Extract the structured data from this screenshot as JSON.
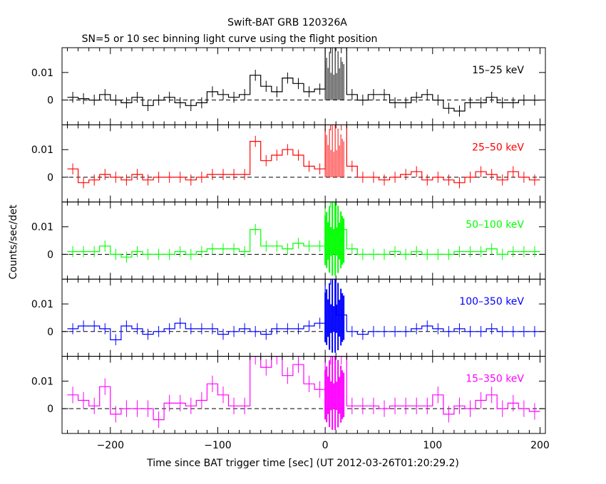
{
  "figure": {
    "title": "Swift-BAT GRB 120326A",
    "subtitle": "SN=5 or 10 sec binning light curve using the flight position",
    "xlabel": "Time since BAT trigger time [sec] (UT 2012-03-26T01:20:29.2)",
    "ylabel": "Counts/sec/det"
  },
  "chart_data": [
    {
      "type": "line",
      "name": "15-25 keV",
      "band_label": "15–25 keV",
      "color": "#000000",
      "xlim": [
        -245,
        205
      ],
      "ylim": [
        -0.009,
        0.019
      ],
      "baseline": 0,
      "yticks": [
        0,
        0.01
      ],
      "ytick_labels": [
        "0",
        "0.01"
      ],
      "xticks": [
        -200,
        -100,
        0,
        100,
        200
      ],
      "xtick_labels": [
        "−200",
        "−100",
        "0",
        "100",
        "200"
      ],
      "x": [
        -235,
        -225,
        -215,
        -205,
        -195,
        -185,
        -175,
        -165,
        -155,
        -145,
        -135,
        -125,
        -115,
        -105,
        -95,
        -85,
        -75,
        -65,
        -55,
        -45,
        -35,
        -25,
        -15,
        -5,
        5,
        15,
        25,
        35,
        45,
        55,
        65,
        75,
        85,
        95,
        105,
        115,
        125,
        135,
        145,
        155,
        165,
        175,
        185,
        195
      ],
      "y": [
        0.001,
        0.0005,
        0,
        0.002,
        0,
        -0.001,
        0.001,
        -0.002,
        0,
        0.001,
        -0.001,
        -0.002,
        -0.001,
        0.003,
        0.002,
        0.001,
        0.002,
        0.009,
        0.005,
        0.003,
        0.008,
        0.006,
        0.003,
        0.004,
        0.019,
        0.019,
        0.002,
        0,
        0.002,
        0.002,
        -0.001,
        -0.001,
        0.001,
        0.002,
        0,
        -0.003,
        -0.004,
        -0.001,
        -0.001,
        0.001,
        -0.001,
        -0.001,
        0,
        0
      ],
      "yerr": 0.002
    },
    {
      "type": "line",
      "name": "25-50 keV",
      "band_label": "25–50 keV",
      "color": "#ff0000",
      "xlim": [
        -245,
        205
      ],
      "ylim": [
        -0.009,
        0.019
      ],
      "baseline": 0,
      "yticks": [
        0,
        0.01
      ],
      "ytick_labels": [
        "0",
        "0.01"
      ],
      "xticks": [
        -200,
        -100,
        0,
        100,
        200
      ],
      "xtick_labels": [
        "−200",
        "−100",
        "0",
        "100",
        "200"
      ],
      "x": [
        -235,
        -225,
        -215,
        -205,
        -195,
        -185,
        -175,
        -165,
        -155,
        -145,
        -135,
        -125,
        -115,
        -105,
        -95,
        -85,
        -75,
        -65,
        -55,
        -45,
        -35,
        -25,
        -15,
        -5,
        5,
        15,
        25,
        35,
        45,
        55,
        65,
        75,
        85,
        95,
        105,
        115,
        125,
        135,
        145,
        155,
        165,
        175,
        185,
        195
      ],
      "y": [
        0.003,
        -0.002,
        -0.001,
        0.001,
        0,
        -0.001,
        0.001,
        -0.001,
        0,
        0,
        0,
        -0.001,
        0,
        0.001,
        0.001,
        0.001,
        0.001,
        0.013,
        0.006,
        0.008,
        0.01,
        0.008,
        0.004,
        0.003,
        0.019,
        0.019,
        0.004,
        0,
        0,
        -0.001,
        0,
        0.001,
        0.002,
        -0.001,
        0,
        -0.001,
        -0.002,
        0,
        0.002,
        0.001,
        -0.001,
        0.002,
        0,
        -0.001
      ],
      "yerr": 0.002
    },
    {
      "type": "line",
      "name": "50-100 keV",
      "band_label": "50–100 keV",
      "color": "#00ff00",
      "xlim": [
        -245,
        205
      ],
      "ylim": [
        -0.009,
        0.019
      ],
      "baseline": 0,
      "yticks": [
        0,
        0.01
      ],
      "ytick_labels": [
        "0",
        "0.01"
      ],
      "xticks": [
        -200,
        -100,
        0,
        100,
        200
      ],
      "xtick_labels": [
        "−200",
        "−100",
        "0",
        "100",
        "200"
      ],
      "x": [
        -235,
        -225,
        -215,
        -205,
        -195,
        -185,
        -175,
        -165,
        -155,
        -145,
        -135,
        -125,
        -115,
        -105,
        -95,
        -85,
        -75,
        -65,
        -55,
        -45,
        -35,
        -25,
        -15,
        -5,
        5,
        15,
        25,
        35,
        45,
        55,
        65,
        75,
        85,
        95,
        105,
        115,
        125,
        135,
        145,
        155,
        165,
        175,
        185,
        195
      ],
      "y": [
        0.001,
        0.001,
        0.001,
        0.003,
        0,
        -0.001,
        0.001,
        0,
        0,
        0,
        0.001,
        0,
        0.001,
        0.002,
        0.002,
        0.002,
        0.001,
        0.009,
        0.003,
        0.003,
        0.002,
        0.004,
        0.003,
        0.003,
        0.019,
        0.009,
        0.002,
        0,
        0,
        0,
        0.001,
        0,
        0.001,
        0,
        0,
        0,
        0.001,
        0.001,
        0.001,
        0.002,
        0,
        0.001,
        0.001,
        0.001
      ],
      "yerr": 0.002
    },
    {
      "type": "line",
      "name": "100-350 keV",
      "band_label": "100–350 keV",
      "color": "#0000ff",
      "xlim": [
        -245,
        205
      ],
      "ylim": [
        -0.009,
        0.019
      ],
      "baseline": 0,
      "yticks": [
        0,
        0.01
      ],
      "ytick_labels": [
        "0",
        "0.01"
      ],
      "xticks": [
        -200,
        -100,
        0,
        100,
        200
      ],
      "xtick_labels": [
        "−200",
        "−100",
        "0",
        "100",
        "200"
      ],
      "x": [
        -235,
        -225,
        -215,
        -205,
        -195,
        -185,
        -175,
        -165,
        -155,
        -145,
        -135,
        -125,
        -115,
        -105,
        -95,
        -85,
        -75,
        -65,
        -55,
        -45,
        -35,
        -25,
        -15,
        -5,
        5,
        15,
        25,
        35,
        45,
        55,
        65,
        75,
        85,
        95,
        105,
        115,
        125,
        135,
        145,
        155,
        165,
        175,
        185,
        195
      ],
      "y": [
        0.001,
        0.002,
        0.002,
        0.001,
        -0.003,
        0.002,
        0.001,
        -0.001,
        0,
        0.001,
        0.003,
        0.001,
        0.001,
        0.001,
        -0.001,
        0,
        0.001,
        0,
        -0.001,
        0.001,
        0.001,
        0.001,
        0.002,
        0.003,
        0.019,
        0.006,
        0,
        -0.001,
        0,
        0,
        0,
        0,
        0.001,
        0.002,
        0.001,
        0,
        0.001,
        0,
        0,
        0.001,
        0,
        0,
        0,
        0
      ],
      "yerr": 0.002
    },
    {
      "type": "line",
      "name": "15-350 keV",
      "band_label": "15–350 keV",
      "color": "#ff00ff",
      "xlim": [
        -245,
        205
      ],
      "ylim": [
        -0.009,
        0.019
      ],
      "baseline": 0,
      "yticks": [
        0,
        0.01
      ],
      "ytick_labels": [
        "0",
        "0.01"
      ],
      "xticks": [
        -200,
        -100,
        0,
        100,
        200
      ],
      "xtick_labels": [
        "−200",
        "−100",
        "0",
        "100",
        "200"
      ],
      "x": [
        -235,
        -225,
        -215,
        -205,
        -195,
        -185,
        -175,
        -165,
        -155,
        -145,
        -135,
        -125,
        -115,
        -105,
        -95,
        -85,
        -75,
        -65,
        -55,
        -45,
        -35,
        -25,
        -15,
        -5,
        5,
        15,
        25,
        35,
        45,
        55,
        65,
        75,
        85,
        95,
        105,
        115,
        125,
        135,
        145,
        155,
        165,
        175,
        185,
        195
      ],
      "y": [
        0.005,
        0.003,
        0.001,
        0.008,
        -0.002,
        0,
        0,
        0,
        -0.004,
        0.002,
        0.002,
        0.001,
        0.003,
        0.009,
        0.005,
        0.001,
        0.001,
        0.019,
        0.015,
        0.019,
        0.012,
        0.016,
        0.009,
        0.007,
        0.019,
        0.019,
        0.001,
        0.001,
        0.001,
        0,
        0.001,
        0.001,
        0.001,
        0.001,
        0.005,
        -0.002,
        0.001,
        0,
        0.003,
        0.005,
        0,
        0.002,
        0,
        -0.001
      ],
      "yerr": 0.003
    }
  ]
}
